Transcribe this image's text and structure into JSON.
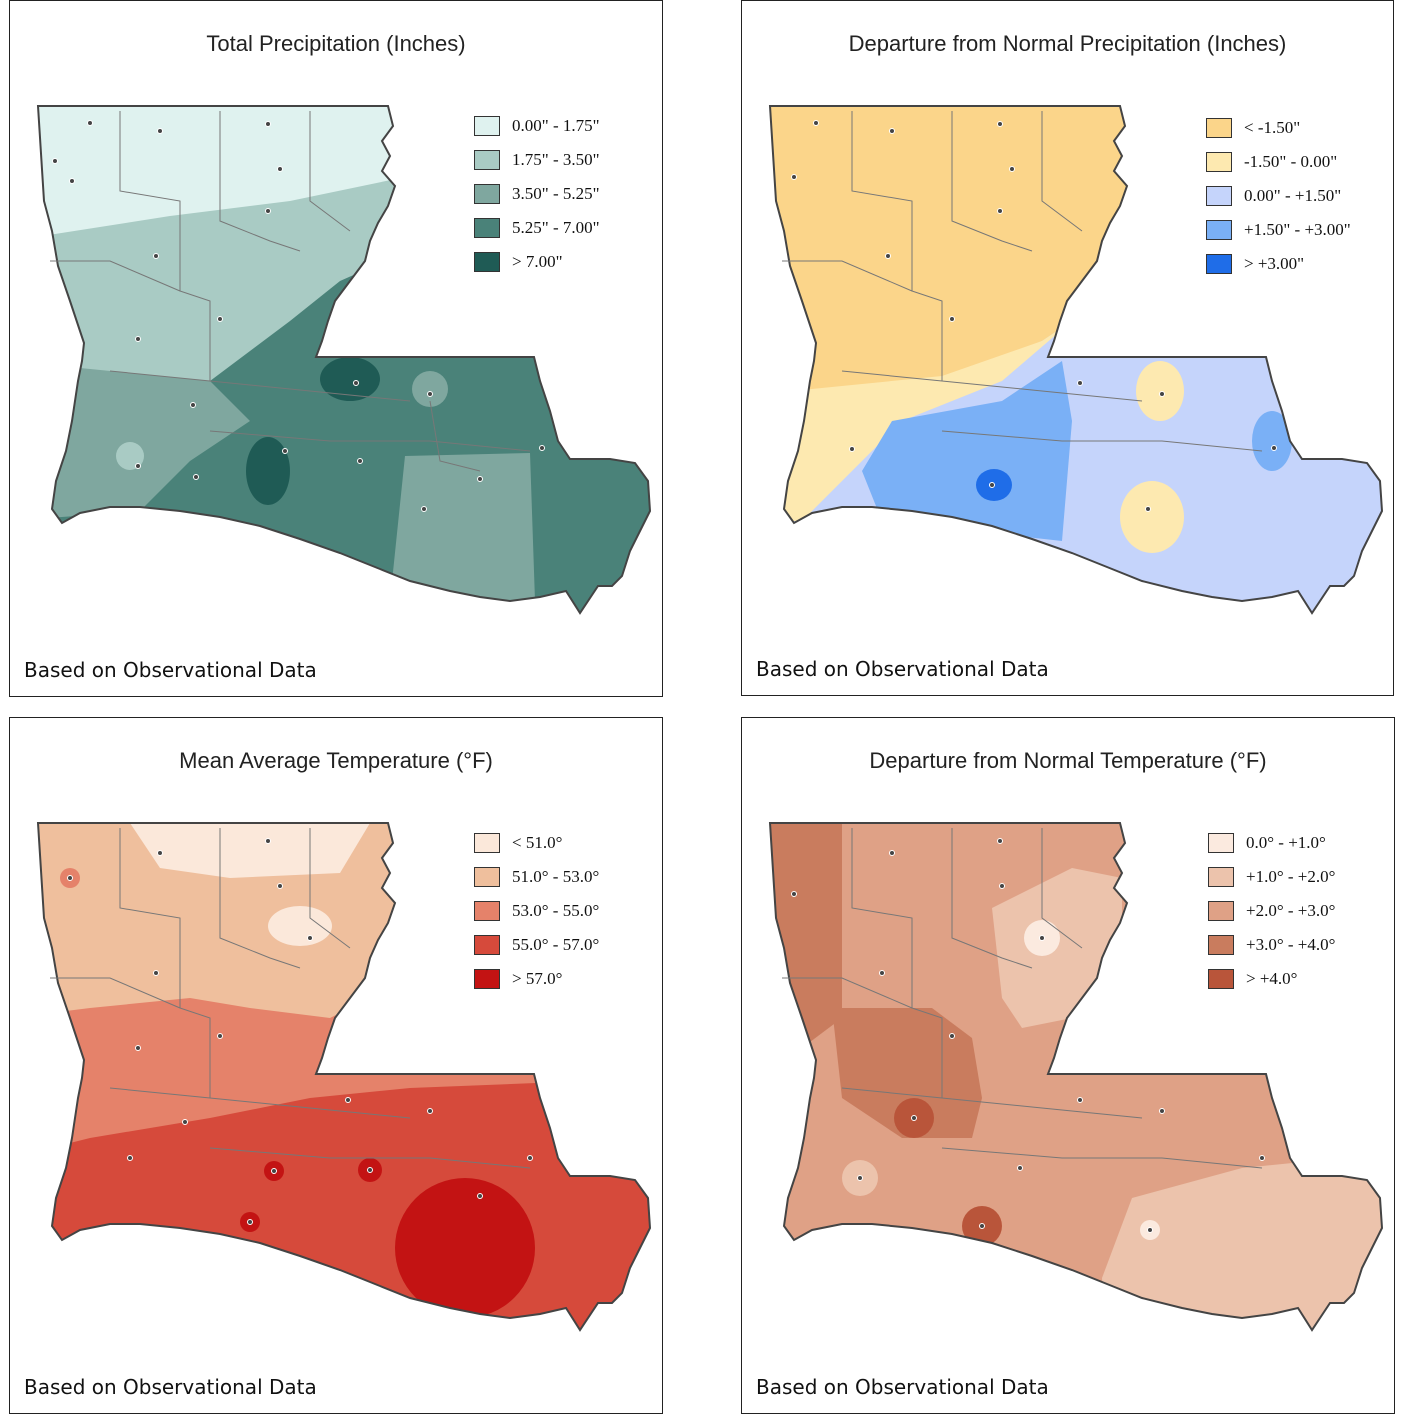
{
  "footer_text": "Based on Observational Data",
  "panels": [
    {
      "title": "Total Precipitation (Inches)",
      "legend": [
        {
          "label": "0.00\" - 1.75\"",
          "color": "#dff2ef"
        },
        {
          "label": "1.75\" - 3.50\"",
          "color": "#a9cbc4"
        },
        {
          "label": "3.50\" - 5.25\"",
          "color": "#7fa79f"
        },
        {
          "label": "5.25\" - 7.00\"",
          "color": "#4a8279"
        },
        {
          "label": "> 7.00\"",
          "color": "#1f5b55"
        }
      ]
    },
    {
      "title": "Departure from Normal Precipitation (Inches)",
      "legend": [
        {
          "label": "< -1.50\"",
          "color": "#fbd58a"
        },
        {
          "label": "-1.50\" - 0.00\"",
          "color": "#fde9b0"
        },
        {
          "label": "0.00\" - +1.50\"",
          "color": "#c5d4fb"
        },
        {
          "label": "+1.50\" - +3.00\"",
          "color": "#7ab0f6"
        },
        {
          "label": "> +3.00\"",
          "color": "#1f6de8"
        }
      ]
    },
    {
      "title": "Mean Average Temperature (°F)",
      "legend": [
        {
          "label": "< 51.0°",
          "color": "#fbe8da"
        },
        {
          "label": "51.0° - 53.0°",
          "color": "#efbf9d"
        },
        {
          "label": "53.0° - 55.0°",
          "color": "#e5826a"
        },
        {
          "label": "55.0° - 57.0°",
          "color": "#d64a3b"
        },
        {
          "label": "> 57.0°",
          "color": "#c31313"
        }
      ]
    },
    {
      "title": "Departure from Normal Temperature (°F)",
      "legend": [
        {
          "label": "0.0° - +1.0°",
          "color": "#fbeadf"
        },
        {
          "label": "+1.0° - +2.0°",
          "color": "#ecc3ac"
        },
        {
          "label": "+2.0° - +3.0°",
          "color": "#dfa186"
        },
        {
          "label": "+3.0° - +4.0°",
          "color": "#c97c5e"
        },
        {
          "label": "> +4.0°",
          "color": "#b9553a"
        }
      ]
    }
  ]
}
